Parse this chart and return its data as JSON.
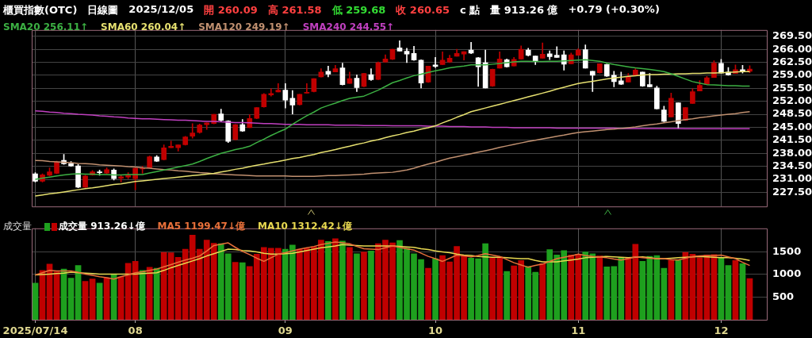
{
  "chart_data": [
    {
      "type": "candlestick",
      "title": "櫃買指數(OTC)",
      "annotations": [
        "日線圖",
        "2025/12/05",
        "開 260.09",
        "高 261.58",
        "低 259.68",
        "收 260.65",
        "c 點",
        "量 913.26 億",
        "+0.79 (+0.30%)"
      ],
      "categories": [
        "2025/07/14",
        null,
        null,
        null,
        null,
        null,
        null,
        null,
        null,
        null,
        null,
        null,
        null,
        null,
        "08",
        null,
        null,
        null,
        null,
        null,
        null,
        null,
        null,
        null,
        null,
        null,
        null,
        null,
        null,
        null,
        null,
        null,
        null,
        null,
        null,
        "09",
        null,
        null,
        null,
        null,
        null,
        null,
        null,
        null,
        null,
        null,
        null,
        null,
        null,
        null,
        null,
        null,
        null,
        null,
        null,
        null,
        "10",
        null,
        null,
        null,
        null,
        null,
        null,
        null,
        null,
        null,
        null,
        null,
        null,
        null,
        null,
        null,
        null,
        null,
        null,
        null,
        "11",
        null,
        null,
        null,
        null,
        null,
        null,
        null,
        null,
        null,
        null,
        null,
        null,
        null,
        null,
        null,
        null,
        null,
        null,
        null,
        "12",
        null,
        null,
        null,
        null
      ],
      "ohlc": [
        [
          232.5,
          232.8,
          230.3,
          230.5
        ],
        [
          230.5,
          232.5,
          230.3,
          232.2
        ],
        [
          232.1,
          234.1,
          232.0,
          233.0
        ],
        [
          232.6,
          235.9,
          232.5,
          235.7
        ],
        [
          236.1,
          237.7,
          235.0,
          235.2
        ],
        [
          235.2,
          235.8,
          234.5,
          234.6
        ],
        [
          234.6,
          235.0,
          228.7,
          228.9
        ],
        [
          228.9,
          232.1,
          228.8,
          231.9
        ],
        [
          232.2,
          233.4,
          232.1,
          233.0
        ],
        [
          232.9,
          233.5,
          232.1,
          232.8
        ],
        [
          232.7,
          234.1,
          232.5,
          233.6
        ],
        [
          233.5,
          233.8,
          230.8,
          231.2
        ],
        [
          231.3,
          232.2,
          230.3,
          231.7
        ],
        [
          231.6,
          232.8,
          231.2,
          232.1
        ],
        [
          231.2,
          234.3,
          228.2,
          234.0
        ],
        [
          233.8,
          234.5,
          232.6,
          234.1
        ],
        [
          234.1,
          237.3,
          234.0,
          237.1
        ],
        [
          237.0,
          237.4,
          235.8,
          235.9
        ],
        [
          236.3,
          240.3,
          236.2,
          239.5
        ],
        [
          239.5,
          241.3,
          239.5,
          239.9
        ],
        [
          239.5,
          240.3,
          238.6,
          240.3
        ],
        [
          240.3,
          242.6,
          240.2,
          242.4
        ],
        [
          242.6,
          246.0,
          242.1,
          243.5
        ],
        [
          243.6,
          245.9,
          243.4,
          245.6
        ],
        [
          245.7,
          246.2,
          244.4,
          246.2
        ],
        [
          246.0,
          248.5,
          245.9,
          248.5
        ],
        [
          248.6,
          249.9,
          246.5,
          246.9
        ],
        [
          246.7,
          246.8,
          240.9,
          241.2
        ],
        [
          241.7,
          245.8,
          241.6,
          245.7
        ],
        [
          245.7,
          247.1,
          243.9,
          244.0
        ],
        [
          244.9,
          248.4,
          244.9,
          247.4
        ],
        [
          247.4,
          250.3,
          247.3,
          250.3
        ],
        [
          250.5,
          254.1,
          250.4,
          253.9
        ],
        [
          253.7,
          255.4,
          253.4,
          254.1
        ],
        [
          254.5,
          256.8,
          254.5,
          255.0
        ],
        [
          255.0,
          256.8,
          250.2,
          252.3
        ],
        [
          252.8,
          254.9,
          248.6,
          251.0
        ],
        [
          251.1,
          253.9,
          251.0,
          253.9
        ],
        [
          254.2,
          256.8,
          254.2,
          254.4
        ],
        [
          254.6,
          258.1,
          254.5,
          258.1
        ],
        [
          258.6,
          260.8,
          258.5,
          259.9
        ],
        [
          260.1,
          261.5,
          258.6,
          259.3
        ],
        [
          259.9,
          261.7,
          259.9,
          260.8
        ],
        [
          261.0,
          262.3,
          256.4,
          256.5
        ],
        [
          256.8,
          259.9,
          256.8,
          258.1
        ],
        [
          258.2,
          259.1,
          254.6,
          255.7
        ],
        [
          256.0,
          259.5,
          255.9,
          259.5
        ],
        [
          259.2,
          260.8,
          257.6,
          257.8
        ],
        [
          257.9,
          262.6,
          257.8,
          262.4
        ],
        [
          262.6,
          264.5,
          262.5,
          263.4
        ],
        [
          263.3,
          266.0,
          263.2,
          266.0
        ],
        [
          266.4,
          268.3,
          265.5,
          265.5
        ],
        [
          265.5,
          266.3,
          262.4,
          264.7
        ],
        [
          264.9,
          266.8,
          263.0,
          263.1
        ],
        [
          263.1,
          263.2,
          255.6,
          256.9
        ],
        [
          257.2,
          261.5,
          257.1,
          261.5
        ],
        [
          261.8,
          263.8,
          261.1,
          261.4
        ],
        [
          261.9,
          265.3,
          261.9,
          263.1
        ],
        [
          262.6,
          264.4,
          262.4,
          263.6
        ],
        [
          264.1,
          266.0,
          264.1,
          264.9
        ],
        [
          264.7,
          265.4,
          263.1,
          265.4
        ],
        [
          265.8,
          267.9,
          264.8,
          265.0
        ],
        [
          263.7,
          263.8,
          256.0,
          261.3
        ],
        [
          262.4,
          265.8,
          255.6,
          255.6
        ],
        [
          256.1,
          260.7,
          256.0,
          260.6
        ],
        [
          260.9,
          265.3,
          260.9,
          263.4
        ],
        [
          263.2,
          263.4,
          261.2,
          261.3
        ],
        [
          261.5,
          263.8,
          261.5,
          263.3
        ],
        [
          263.4,
          266.9,
          263.3,
          266.0
        ],
        [
          265.8,
          266.3,
          264.2,
          264.4
        ],
        [
          264.2,
          264.2,
          261.9,
          262.7
        ],
        [
          263.6,
          267.7,
          263.6,
          264.7
        ],
        [
          264.8,
          265.6,
          263.2,
          264.0
        ],
        [
          264.4,
          266.7,
          263.8,
          263.8
        ],
        [
          264.5,
          265.6,
          260.4,
          262.0
        ],
        [
          262.1,
          265.0,
          262.1,
          264.5
        ],
        [
          264.4,
          266.2,
          264.4,
          265.8
        ],
        [
          265.9,
          267.2,
          260.9,
          260.9
        ],
        [
          260.1,
          260.1,
          254.6,
          259.0
        ],
        [
          259.7,
          262.1,
          259.6,
          262.1
        ],
        [
          261.9,
          262.0,
          258.7,
          258.8
        ],
        [
          259.0,
          260.1,
          255.9,
          257.3
        ],
        [
          257.5,
          259.9,
          256.5,
          256.6
        ],
        [
          257.2,
          259.5,
          257.2,
          258.7
        ],
        [
          258.9,
          260.8,
          258.9,
          260.4
        ],
        [
          259.9,
          259.9,
          256.0,
          256.1
        ],
        [
          256.5,
          259.5,
          255.9,
          255.9
        ],
        [
          255.6,
          256.1,
          249.9,
          250.0
        ],
        [
          249.7,
          250.7,
          246.5,
          246.6
        ],
        [
          247.8,
          254.2,
          247.8,
          252.8
        ],
        [
          251.6,
          251.6,
          244.7,
          246.0
        ],
        [
          246.9,
          250.3,
          246.8,
          250.3
        ],
        [
          251.4,
          255.4,
          251.4,
          254.6
        ],
        [
          254.8,
          257.6,
          254.8,
          256.3
        ],
        [
          256.6,
          258.7,
          256.6,
          258.3
        ],
        [
          258.4,
          262.9,
          258.4,
          262.3
        ],
        [
          262.2,
          263.3,
          259.6,
          259.6
        ],
        [
          259.9,
          261.1,
          259.0,
          259.1
        ],
        [
          259.5,
          261.8,
          259.5,
          260.5
        ],
        [
          260.5,
          261.7,
          259.6,
          259.9
        ],
        [
          260.09,
          261.58,
          259.68,
          260.65
        ]
      ],
      "colors": [
        "#ffffff",
        "#c00000",
        "#c00000",
        "#c00000",
        "#ffffff",
        "#ffffff",
        "#ffffff",
        "#c00000",
        "#c00000",
        "#ffffff",
        "#c00000",
        "#ffffff",
        "#c00000",
        "#c00000",
        "#c00000",
        "#c00000",
        "#c00000",
        "#ffffff",
        "#c00000",
        "#c00000",
        "#c00000",
        "#c00000",
        "#c00000",
        "#c00000",
        "#c00000",
        "#c00000",
        "#ffffff",
        "#ffffff",
        "#c00000",
        "#ffffff",
        "#c00000",
        "#c00000",
        "#c00000",
        "#c00000",
        "#c00000",
        "#ffffff",
        "#ffffff",
        "#c00000",
        "#c00000",
        "#c00000",
        "#c00000",
        "#ffffff",
        "#c00000",
        "#ffffff",
        "#c00000",
        "#ffffff",
        "#c00000",
        "#ffffff",
        "#c00000",
        "#c00000",
        "#c00000",
        "#ffffff",
        "#ffffff",
        "#ffffff",
        "#ffffff",
        "#c00000",
        "#ffffff",
        "#c00000",
        "#c00000",
        "#c00000",
        "#c00000",
        "#ffffff",
        "#ffffff",
        "#ffffff",
        "#c00000",
        "#c00000",
        "#ffffff",
        "#c00000",
        "#c00000",
        "#ffffff",
        "#ffffff",
        "#c00000",
        "#ffffff",
        "#ffffff",
        "#ffffff",
        "#c00000",
        "#c00000",
        "#ffffff",
        "#ffffff",
        "#c00000",
        "#ffffff",
        "#ffffff",
        "#ffffff",
        "#c00000",
        "#c00000",
        "#ffffff",
        "#ffffff",
        "#ffffff",
        "#ffffff",
        "#c00000",
        "#ffffff",
        "#c00000",
        "#c00000",
        "#c00000",
        "#c00000",
        "#c00000",
        "#ffffff",
        "#ffffff",
        "#c00000",
        "#ffffff",
        "#c00000"
      ],
      "series": [
        {
          "name": "SMA20 256.11↑",
          "type": "line",
          "color": "#3cb043",
          "values": [
            231.0,
            231.3,
            231.6,
            231.9,
            232.2,
            232.4,
            232.5,
            232.4,
            232.4,
            232.3,
            232.3,
            232.2,
            232.2,
            232.3,
            232.3,
            232.3,
            232.7,
            233.1,
            233.5,
            233.9,
            234.3,
            234.7,
            235.1,
            235.8,
            236.6,
            237.3,
            238.0,
            238.5,
            239.0,
            239.4,
            239.9,
            240.9,
            241.8,
            242.8,
            243.7,
            244.5,
            245.8,
            247.0,
            248.1,
            249.1,
            250.2,
            250.9,
            251.5,
            252.2,
            252.8,
            253.1,
            253.4,
            254.2,
            255.0,
            256.0,
            257.0,
            257.6,
            258.3,
            258.9,
            259.3,
            259.8,
            260.2,
            260.6,
            261.0,
            261.3,
            261.5,
            261.8,
            261.8,
            261.8,
            262.0,
            262.2,
            262.4,
            262.6,
            262.8,
            262.8,
            262.7,
            262.7,
            262.8,
            262.8,
            262.9,
            263.0,
            263.1,
            263.2,
            263.0,
            262.8,
            262.3,
            261.9,
            261.6,
            261.3,
            261.0,
            260.8,
            260.6,
            260.3,
            260.0,
            259.4,
            258.7,
            258.0,
            257.3,
            256.9,
            256.5,
            256.4,
            256.3,
            256.2,
            256.2,
            256.1,
            256.1
          ]
        },
        {
          "name": "SMA60 260.04↑",
          "type": "line",
          "color": "#e6e070",
          "values": [
            226.5,
            226.8,
            227.1,
            227.3,
            227.6,
            227.9,
            228.2,
            228.5,
            228.7,
            229.0,
            229.3,
            229.6,
            229.8,
            230.1,
            230.4,
            230.6,
            230.8,
            231.0,
            231.2,
            231.4,
            231.6,
            231.8,
            232.0,
            232.2,
            232.4,
            232.6,
            233.0,
            233.3,
            233.7,
            234.0,
            234.4,
            234.8,
            235.1,
            235.5,
            235.8,
            236.2,
            236.6,
            236.9,
            237.3,
            237.7,
            238.2,
            238.6,
            239.0,
            239.5,
            239.9,
            240.4,
            240.8,
            241.3,
            241.7,
            242.2,
            242.7,
            243.1,
            243.6,
            244.0,
            244.5,
            244.9,
            245.4,
            246.2,
            246.9,
            247.7,
            248.4,
            249.2,
            249.7,
            250.2,
            250.7,
            251.2,
            251.7,
            252.2,
            252.7,
            253.2,
            253.7,
            254.2,
            254.7,
            255.3,
            255.8,
            256.3,
            256.8,
            257.1,
            257.4,
            257.7,
            258.0,
            258.3,
            258.5,
            258.7,
            258.9,
            259.1,
            259.2,
            259.2,
            259.3,
            259.3,
            259.4,
            259.4,
            259.5,
            259.5,
            259.6,
            259.6,
            259.7,
            259.8,
            259.9,
            260.0,
            260.0
          ]
        },
        {
          "name": "SMA120 249.19↑",
          "type": "line",
          "color": "#c09070",
          "values": [
            236.1,
            236.0,
            235.8,
            235.7,
            235.6,
            235.5,
            235.3,
            235.2,
            235.1,
            234.9,
            234.8,
            234.7,
            234.6,
            234.4,
            234.3,
            234.1,
            234.0,
            233.8,
            233.6,
            233.5,
            233.3,
            233.2,
            233.0,
            232.8,
            232.7,
            232.5,
            232.4,
            232.3,
            232.2,
            232.1,
            232.0,
            231.9,
            231.9,
            231.9,
            231.9,
            231.9,
            231.8,
            231.8,
            231.8,
            231.8,
            231.9,
            232.0,
            232.0,
            232.1,
            232.2,
            232.3,
            232.4,
            232.6,
            232.7,
            232.8,
            232.9,
            233.2,
            233.5,
            234.0,
            234.6,
            235.1,
            235.6,
            236.2,
            236.7,
            237.1,
            237.5,
            237.9,
            238.3,
            238.7,
            239.1,
            239.6,
            240.0,
            240.4,
            240.8,
            241.2,
            241.5,
            241.9,
            242.2,
            242.6,
            242.9,
            243.3,
            243.6,
            243.8,
            244.0,
            244.2,
            244.4,
            244.5,
            244.7,
            244.9,
            245.1,
            245.4,
            245.7,
            245.9,
            246.2,
            246.5,
            246.8,
            247.1,
            247.3,
            247.6,
            247.8,
            248.1,
            248.3,
            248.5,
            248.7,
            249.0,
            249.2
          ]
        },
        {
          "name": "SMA240 244.55↑",
          "type": "line",
          "color": "#c040c0",
          "values": [
            249.4,
            249.3,
            249.1,
            249.0,
            248.8,
            248.7,
            248.5,
            248.4,
            248.3,
            248.1,
            248.0,
            247.8,
            247.7,
            247.5,
            247.4,
            247.3,
            247.3,
            247.2,
            247.1,
            247.0,
            246.9,
            246.9,
            246.8,
            246.7,
            246.6,
            246.6,
            246.5,
            246.4,
            246.3,
            246.3,
            246.2,
            246.1,
            246.0,
            246.0,
            245.9,
            245.8,
            245.8,
            245.8,
            245.7,
            245.7,
            245.7,
            245.7,
            245.6,
            245.6,
            245.6,
            245.6,
            245.5,
            245.5,
            245.5,
            245.5,
            245.4,
            245.4,
            245.4,
            245.4,
            245.4,
            245.3,
            245.3,
            245.3,
            245.2,
            245.2,
            245.2,
            245.1,
            245.1,
            245.1,
            245.0,
            245.0,
            245.0,
            244.9,
            244.9,
            244.9,
            244.9,
            244.9,
            244.9,
            244.8,
            244.8,
            244.8,
            244.8,
            244.8,
            244.8,
            244.8,
            244.8,
            244.8,
            244.7,
            244.7,
            244.7,
            244.7,
            244.7,
            244.7,
            244.7,
            244.7,
            244.7,
            244.6,
            244.6,
            244.6,
            244.6,
            244.6,
            244.6,
            244.6,
            244.6,
            244.6,
            244.6
          ]
        }
      ],
      "ylim": [
        223.7,
        271.2
      ],
      "yticks": [
        {
          "value": 227.5,
          "label": "227.50"
        },
        {
          "value": 231,
          "label": "231.00"
        },
        {
          "value": 234.5,
          "label": "234.50"
        },
        {
          "value": 238,
          "label": "238.00"
        },
        {
          "value": 241.5,
          "label": "241.50"
        },
        {
          "value": 245,
          "label": "245.00"
        },
        {
          "value": 248.5,
          "label": "248.50"
        },
        {
          "value": 252,
          "label": "252.00"
        },
        {
          "value": 255.5,
          "label": "255.50"
        },
        {
          "value": 259,
          "label": "259.00"
        },
        {
          "value": 262.5,
          "label": "262.50"
        },
        {
          "value": 266,
          "label": "266.00"
        },
        {
          "value": 269.5,
          "label": "269.50"
        }
      ],
      "grid": true,
      "legend": "top left",
      "tick_labels": "y"
    },
    {
      "type": "bar",
      "title": "成交量",
      "categories": [
        "2025/07/14",
        null,
        null,
        null,
        null,
        null,
        null,
        null,
        null,
        null,
        null,
        null,
        null,
        null,
        "08",
        null,
        null,
        null,
        null,
        null,
        null,
        null,
        null,
        null,
        null,
        null,
        null,
        null,
        null,
        null,
        null,
        null,
        null,
        null,
        null,
        "09",
        null,
        null,
        null,
        null,
        null,
        null,
        null,
        null,
        null,
        null,
        null,
        null,
        null,
        null,
        null,
        null,
        null,
        null,
        null,
        null,
        "10",
        null,
        null,
        null,
        null,
        null,
        null,
        null,
        null,
        null,
        null,
        null,
        null,
        null,
        null,
        null,
        null,
        null,
        null,
        null,
        "11",
        null,
        null,
        null,
        null,
        null,
        null,
        null,
        null,
        null,
        null,
        null,
        null,
        null,
        null,
        null,
        null,
        null,
        null,
        null,
        "12",
        null,
        null,
        null,
        null
      ],
      "series": [
        {
          "name": "成交量 913.26↓億",
          "type": "bar",
          "colors": [
            "#1ea01e",
            "#c00000",
            "#c00000",
            "#c00000",
            "#1ea01e",
            "#1ea01e",
            "#1ea01e",
            "#c00000",
            "#c00000",
            "#1ea01e",
            "#c00000",
            "#1ea01e",
            "#c00000",
            "#c00000",
            "#c00000",
            "#1ea01e",
            "#c00000",
            "#1ea01e",
            "#c00000",
            "#c00000",
            "#c00000",
            "#c00000",
            "#c00000",
            "#c00000",
            "#c00000",
            "#c00000",
            "#1ea01e",
            "#1ea01e",
            "#c00000",
            "#1ea01e",
            "#c00000",
            "#c00000",
            "#c00000",
            "#c00000",
            "#c00000",
            "#1ea01e",
            "#1ea01e",
            "#c00000",
            "#c00000",
            "#c00000",
            "#c00000",
            "#1ea01e",
            "#c00000",
            "#1ea01e",
            "#c00000",
            "#1ea01e",
            "#c00000",
            "#1ea01e",
            "#c00000",
            "#c00000",
            "#c00000",
            "#1ea01e",
            "#1ea01e",
            "#1ea01e",
            "#1ea01e",
            "#c00000",
            "#1ea01e",
            "#c00000",
            "#c00000",
            "#c00000",
            "#c00000",
            "#1ea01e",
            "#1ea01e",
            "#1ea01e",
            "#c00000",
            "#c00000",
            "#1ea01e",
            "#c00000",
            "#c00000",
            "#1ea01e",
            "#1ea01e",
            "#c00000",
            "#1ea01e",
            "#1ea01e",
            "#1ea01e",
            "#c00000",
            "#c00000",
            "#1ea01e",
            "#1ea01e",
            "#c00000",
            "#1ea01e",
            "#1ea01e",
            "#1ea01e",
            "#c00000",
            "#c00000",
            "#1ea01e",
            "#1ea01e",
            "#1ea01e",
            "#1ea01e",
            "#c00000",
            "#1ea01e",
            "#c00000",
            "#c00000",
            "#c00000",
            "#c00000",
            "#c00000",
            "#1ea01e",
            "#1ea01e",
            "#c00000",
            "#1ea01e",
            "#c00000"
          ],
          "values": [
            810,
            1090,
            1230,
            1060,
            1120,
            920,
            1200,
            850,
            900,
            810,
            930,
            1000,
            950,
            1250,
            1290,
            1090,
            1160,
            1140,
            1490,
            1480,
            1380,
            1560,
            1870,
            1560,
            1760,
            1690,
            1680,
            1460,
            1270,
            1260,
            1180,
            1450,
            1600,
            1580,
            1580,
            1560,
            1650,
            1560,
            1580,
            1610,
            1760,
            1730,
            1790,
            1740,
            1600,
            1460,
            1500,
            1520,
            1680,
            1760,
            1700,
            1750,
            1580,
            1460,
            1330,
            1140,
            1350,
            1420,
            1280,
            1620,
            1410,
            1360,
            1350,
            1680,
            1370,
            1390,
            1070,
            1190,
            1310,
            1180,
            1050,
            1240,
            1550,
            1430,
            1530,
            1430,
            1450,
            1500,
            1460,
            1410,
            1170,
            1180,
            1370,
            1370,
            1670,
            1290,
            1400,
            1420,
            1140,
            1310,
            1310,
            1490,
            1450,
            1370,
            1430,
            1440,
            1370,
            1200,
            1310,
            1240,
            910
          ]
        },
        {
          "name": "MA5 1199.47↓億",
          "type": "line",
          "color": "#e8703a",
          "values": [
            990,
            1040,
            1090,
            1080,
            1080,
            1080,
            1050,
            1010,
            980,
            950,
            930,
            900,
            950,
            990,
            1040,
            1060,
            1090,
            1120,
            1170,
            1220,
            1270,
            1320,
            1360,
            1410,
            1520,
            1640,
            1670,
            1700,
            1600,
            1510,
            1440,
            1360,
            1290,
            1370,
            1450,
            1480,
            1520,
            1560,
            1590,
            1620,
            1660,
            1690,
            1720,
            1700,
            1680,
            1620,
            1570,
            1560,
            1550,
            1590,
            1630,
            1600,
            1570,
            1540,
            1470,
            1400,
            1350,
            1290,
            1360,
            1430,
            1410,
            1390,
            1420,
            1460,
            1430,
            1400,
            1330,
            1260,
            1210,
            1160,
            1200,
            1230,
            1290,
            1350,
            1380,
            1410,
            1450,
            1420,
            1400,
            1390,
            1370,
            1340,
            1320,
            1350,
            1390,
            1370,
            1360,
            1350,
            1350,
            1330,
            1320,
            1360,
            1400,
            1410,
            1420,
            1420,
            1430,
            1390,
            1350,
            1270,
            1200
          ]
        },
        {
          "name": "MA10 1312.42↓億",
          "type": "line",
          "color": "#e8d850",
          "values": [
            990,
            1000,
            1010,
            1020,
            1030,
            1050,
            1040,
            1030,
            1020,
            1010,
            1010,
            1010,
            1010,
            1010,
            1010,
            1020,
            1030,
            1040,
            1090,
            1150,
            1200,
            1250,
            1300,
            1350,
            1410,
            1460,
            1510,
            1560,
            1550,
            1530,
            1520,
            1500,
            1470,
            1450,
            1450,
            1460,
            1470,
            1500,
            1530,
            1560,
            1590,
            1610,
            1630,
            1660,
            1650,
            1640,
            1630,
            1630,
            1630,
            1630,
            1630,
            1620,
            1610,
            1600,
            1570,
            1550,
            1520,
            1500,
            1480,
            1450,
            1430,
            1420,
            1400,
            1390,
            1380,
            1380,
            1370,
            1360,
            1350,
            1350,
            1310,
            1280,
            1280,
            1280,
            1300,
            1320,
            1340,
            1370,
            1380,
            1390,
            1400,
            1390,
            1380,
            1370,
            1380,
            1390,
            1370,
            1350,
            1350,
            1360,
            1370,
            1380,
            1390,
            1400,
            1390,
            1380,
            1370,
            1370,
            1360,
            1340,
            1310
          ]
        }
      ],
      "ylim": [
        0,
        2020
      ],
      "yticks": [
        500,
        1000,
        1500
      ],
      "grid": true,
      "legend": "top left"
    }
  ]
}
